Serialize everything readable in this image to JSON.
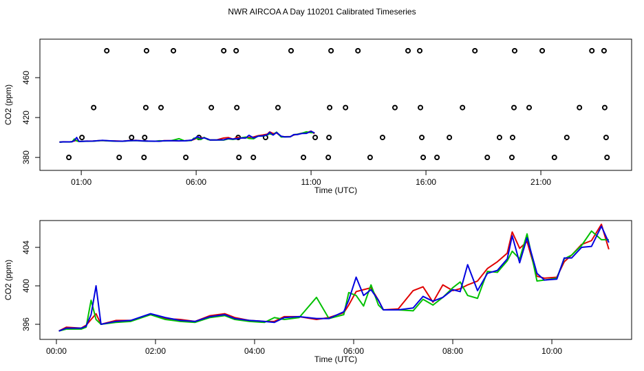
{
  "title": "NWR AIRCOA A  Day 110201  Calibrated Timeseries",
  "chart_data": [
    {
      "type": "scatter",
      "xlabel": "Time (UTC)",
      "ylabel": "CO2 (ppm)",
      "xlim": [
        -0.8,
        24.95
      ],
      "ylim": [
        367,
        498.6
      ],
      "xticks": [
        {
          "value": 1,
          "label": "01:00"
        },
        {
          "value": 6,
          "label": "06:00"
        },
        {
          "value": 11,
          "label": "11:00"
        },
        {
          "value": 16,
          "label": "16:00"
        },
        {
          "value": 21,
          "label": "21:00"
        }
      ],
      "yticks": [
        380,
        420,
        460
      ],
      "series": [
        {
          "color": "#000000",
          "marker": "o",
          "x": [
            2.11,
            3.84,
            5.01,
            7.2,
            7.74,
            10.13,
            11.87,
            13.04,
            15.22,
            15.73,
            18.13,
            19.86,
            21.06,
            23.22,
            23.75,
            1.54,
            3.81,
            4.47,
            6.66,
            7.77,
            9.56,
            11.81,
            12.5,
            14.65,
            15.76,
            17.59,
            19.83,
            20.49,
            22.68,
            23.78,
            1.03,
            3.19,
            3.76,
            6.12,
            7.83,
            9.02,
            11.18,
            11.78,
            14.11,
            15.82,
            17.02,
            19.2,
            19.77,
            22.13,
            23.84,
            0.46,
            2.65,
            3.73,
            5.55,
            7.86,
            8.49,
            10.67,
            11.75,
            13.57,
            15.88,
            16.48,
            18.67,
            19.74,
            21.59,
            23.88
          ],
          "values": [
            487,
            487,
            487,
            487,
            487,
            487,
            487,
            487,
            487,
            487,
            487,
            487,
            487,
            487,
            487,
            430,
            430,
            430,
            430,
            430,
            430,
            430,
            430,
            430,
            430,
            430,
            430,
            430,
            430,
            430,
            400,
            400,
            400,
            400,
            400,
            400,
            400,
            400,
            400,
            400,
            400,
            400,
            400,
            400,
            400,
            380,
            380,
            380,
            380,
            380,
            380,
            380,
            380,
            380,
            380,
            380,
            380,
            380,
            380,
            380
          ]
        },
        {
          "color": "#e00000",
          "x": [
            0.05,
            0.2,
            0.5,
            0.6,
            0.7,
            0.8,
            0.9,
            1.2,
            1.5,
            1.9,
            2.2,
            2.5,
            2.8,
            3.1,
            3.4,
            3.6,
            3.9,
            4.2,
            4.4,
            4.6,
            4.9,
            5.25,
            5.5,
            5.8,
            5.9,
            6.05,
            6.2,
            6.35,
            6.5,
            6.6,
            6.9,
            7.2,
            7.4,
            7.6,
            7.8,
            8.0,
            8.15,
            8.3,
            8.5,
            8.7,
            8.9,
            9.1,
            9.2,
            9.35,
            9.5,
            9.7,
            9.85,
            10.1,
            10.25,
            10.4,
            10.6,
            10.8,
            11.0,
            11.15
          ],
          "values": [
            395.3,
            395.7,
            395.6,
            395.9,
            396.5,
            397.1,
            396.0,
            396.4,
            396.4,
            397.0,
            396.6,
            396.5,
            396.3,
            396.9,
            397.1,
            396.7,
            396.4,
            396.3,
            396.3,
            396.8,
            396.8,
            396.5,
            396.7,
            397.2,
            398.0,
            399.4,
            399.6,
            399.8,
            398.5,
            397.5,
            397.6,
            399.5,
            399.9,
            398.3,
            400.1,
            399.5,
            399.7,
            400.1,
            400.5,
            401.8,
            402.5,
            403.4,
            405.6,
            403.9,
            404.6,
            401.0,
            400.8,
            400.9,
            402.5,
            403.2,
            404.3,
            404.7,
            406.4,
            403.8
          ]
        },
        {
          "color": "#00c000",
          "x": [
            0.05,
            0.2,
            0.5,
            0.6,
            0.7,
            0.8,
            0.9,
            1.2,
            1.5,
            1.9,
            2.2,
            2.5,
            2.8,
            3.1,
            3.4,
            3.6,
            3.9,
            4.2,
            4.4,
            4.6,
            4.9,
            5.25,
            5.5,
            5.8,
            5.9,
            6.05,
            6.2,
            6.35,
            6.5,
            6.6,
            6.9,
            7.2,
            7.4,
            7.6,
            7.8,
            8.0,
            8.15,
            8.3,
            8.5,
            8.7,
            8.9,
            9.1,
            9.2,
            9.35,
            9.5,
            9.7,
            9.85,
            10.1,
            10.25,
            10.4,
            10.6,
            10.8,
            11.0,
            11.15
          ],
          "values": [
            395.3,
            395.5,
            395.5,
            395.7,
            398.5,
            396.5,
            396.0,
            396.2,
            396.3,
            397.0,
            396.5,
            396.3,
            396.2,
            396.7,
            396.9,
            396.5,
            396.3,
            396.2,
            396.7,
            396.5,
            396.7,
            398.8,
            396.6,
            397.0,
            399.3,
            399.0,
            397.9,
            400.1,
            398.0,
            397.5,
            397.5,
            397.4,
            398.6,
            398.0,
            398.8,
            399.8,
            400.4,
            399.0,
            398.7,
            401.5,
            401.4,
            402.6,
            403.6,
            402.8,
            405.4,
            400.5,
            400.6,
            400.8,
            402.8,
            403.2,
            404.2,
            405.7,
            404.8,
            404.8
          ]
        },
        {
          "color": "#0000e0",
          "x": [
            0.05,
            0.2,
            0.5,
            0.6,
            0.7,
            0.8,
            0.9,
            1.2,
            1.5,
            1.9,
            2.2,
            2.5,
            2.8,
            3.1,
            3.4,
            3.6,
            3.9,
            4.2,
            4.4,
            4.6,
            4.9,
            5.25,
            5.5,
            5.8,
            5.9,
            6.05,
            6.2,
            6.35,
            6.5,
            6.6,
            6.9,
            7.2,
            7.4,
            7.6,
            7.8,
            8.0,
            8.15,
            8.3,
            8.5,
            8.7,
            8.9,
            9.1,
            9.2,
            9.35,
            9.5,
            9.7,
            9.85,
            10.1,
            10.25,
            10.4,
            10.6,
            10.8,
            11.0,
            11.15
          ],
          "values": [
            395.3,
            395.6,
            395.6,
            395.8,
            397.0,
            400.0,
            396.0,
            396.3,
            396.4,
            397.1,
            396.7,
            396.4,
            396.3,
            396.8,
            397.0,
            396.6,
            396.4,
            396.3,
            396.2,
            396.7,
            396.8,
            396.6,
            396.6,
            397.3,
            398.5,
            400.9,
            399.0,
            399.6,
            398.5,
            397.5,
            397.5,
            397.7,
            398.9,
            398.4,
            398.8,
            399.6,
            399.4,
            402.2,
            399.5,
            401.3,
            401.6,
            402.8,
            405.2,
            402.4,
            405.0,
            401.3,
            400.6,
            400.7,
            402.9,
            402.9,
            404.0,
            404.1,
            406.2,
            404.5
          ]
        }
      ]
    },
    {
      "type": "line",
      "xlabel": "Time (UTC)",
      "ylabel": "CO2 (ppm)",
      "xlim": [
        -0.333,
        11.61
      ],
      "ylim": [
        394.43,
        406.79
      ],
      "xticks": [
        {
          "value": 0,
          "label": "00:00"
        },
        {
          "value": 2,
          "label": "02:00"
        },
        {
          "value": 4,
          "label": "04:00"
        },
        {
          "value": 6,
          "label": "06:00"
        },
        {
          "value": 8,
          "label": "08:00"
        },
        {
          "value": 10,
          "label": "10:00"
        }
      ],
      "yticks": [
        396,
        400,
        404
      ],
      "x": [
        0.05,
        0.2,
        0.5,
        0.6,
        0.7,
        0.8,
        0.9,
        1.2,
        1.5,
        1.9,
        2.2,
        2.5,
        2.8,
        3.1,
        3.4,
        3.6,
        3.9,
        4.2,
        4.4,
        4.6,
        4.9,
        5.25,
        5.5,
        5.8,
        5.9,
        6.05,
        6.2,
        6.35,
        6.5,
        6.6,
        6.9,
        7.2,
        7.4,
        7.6,
        7.8,
        8.0,
        8.15,
        8.3,
        8.5,
        8.7,
        8.9,
        9.1,
        9.2,
        9.35,
        9.5,
        9.7,
        9.85,
        10.1,
        10.25,
        10.4,
        10.6,
        10.8,
        11.0,
        11.15
      ],
      "series": [
        {
          "color": "#e00000",
          "values": [
            395.3,
            395.7,
            395.6,
            395.9,
            396.5,
            397.1,
            396.0,
            396.4,
            396.4,
            397.0,
            396.6,
            396.5,
            396.3,
            396.9,
            397.1,
            396.7,
            396.4,
            396.3,
            396.3,
            396.8,
            396.8,
            396.5,
            396.7,
            397.2,
            398.0,
            399.4,
            399.6,
            399.8,
            398.5,
            397.5,
            397.6,
            399.5,
            399.9,
            398.3,
            400.1,
            399.5,
            399.7,
            400.1,
            400.5,
            401.8,
            402.5,
            403.4,
            405.6,
            403.9,
            404.6,
            401.0,
            400.8,
            400.9,
            402.5,
            403.2,
            404.3,
            404.7,
            406.4,
            403.8
          ]
        },
        {
          "color": "#00c000",
          "values": [
            395.3,
            395.5,
            395.5,
            395.7,
            398.5,
            396.5,
            396.0,
            396.2,
            396.3,
            397.0,
            396.5,
            396.3,
            396.2,
            396.7,
            396.9,
            396.5,
            396.3,
            396.2,
            396.7,
            396.5,
            396.7,
            398.8,
            396.6,
            397.0,
            399.3,
            399.0,
            397.9,
            400.1,
            398.0,
            397.5,
            397.5,
            397.4,
            398.6,
            398.0,
            398.8,
            399.8,
            400.4,
            399.0,
            398.7,
            401.5,
            401.4,
            402.6,
            403.6,
            402.8,
            405.4,
            400.5,
            400.6,
            400.8,
            402.8,
            403.2,
            404.2,
            405.7,
            404.8,
            404.8
          ]
        },
        {
          "color": "#0000e0",
          "values": [
            395.3,
            395.6,
            395.6,
            395.8,
            397.0,
            400.0,
            396.0,
            396.3,
            396.4,
            397.1,
            396.7,
            396.4,
            396.3,
            396.8,
            397.0,
            396.6,
            396.4,
            396.3,
            396.2,
            396.7,
            396.8,
            396.6,
            396.6,
            397.3,
            398.5,
            400.9,
            399.0,
            399.6,
            398.5,
            397.5,
            397.5,
            397.7,
            398.9,
            398.4,
            398.8,
            399.6,
            399.4,
            402.2,
            399.5,
            401.3,
            401.6,
            402.8,
            405.2,
            402.4,
            405.0,
            401.3,
            400.6,
            400.7,
            402.9,
            402.9,
            404.0,
            404.1,
            406.2,
            404.5
          ]
        }
      ]
    }
  ]
}
